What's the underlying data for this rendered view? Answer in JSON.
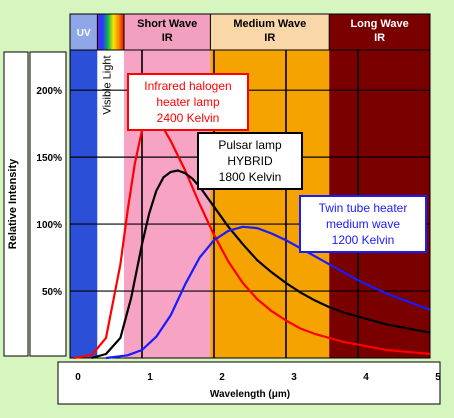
{
  "chart_data": {
    "type": "line",
    "xlabel": "Wavelength (μm)",
    "ylabel": "Relative Intensity",
    "xlim": [
      0,
      5
    ],
    "ylim": [
      0,
      2.3
    ],
    "x_ticks": [
      "0",
      "1",
      "2",
      "3",
      "4",
      "5"
    ],
    "y_ticks": [
      "50%",
      "100%",
      "150%",
      "200%"
    ],
    "grid": true,
    "bands": [
      {
        "label_line1": "UV",
        "label_line2": "",
        "x_range": [
          0,
          0.38
        ],
        "color": "#2b4fd6",
        "header_color": "#8fa7e6",
        "text_color": "#ffffff"
      },
      {
        "label_line1": "Visible Light",
        "label_line2": "",
        "x_range": [
          0.38,
          0.75
        ],
        "color": "#ffffff",
        "header_color": "rainbow",
        "text_color": "#000000"
      },
      {
        "label_line1": "Short Wave",
        "label_line2": "IR",
        "x_range": [
          0.75,
          1.95
        ],
        "color": "#f7a3c3",
        "header_color": "#f2a0c0",
        "text_color": "#000000"
      },
      {
        "label_line1": "Medium Wave",
        "label_line2": "IR",
        "x_range": [
          1.95,
          3.6
        ],
        "color": "#f5a300",
        "header_color": "#fad7a8",
        "text_color": "#000000"
      },
      {
        "label_line1": "Long Wave",
        "label_line2": "IR",
        "x_range": [
          3.6,
          5
        ],
        "color": "#7a0000",
        "header_color": "#7a0000",
        "text_color": "#ffffff"
      }
    ],
    "series": [
      {
        "color": "#ff0000",
        "x": [
          0.05,
          0.3,
          0.5,
          0.7,
          0.8,
          0.9,
          1.0,
          1.1,
          1.15,
          1.25,
          1.4,
          1.6,
          1.8,
          2.0,
          2.2,
          2.4,
          2.6,
          2.8,
          3.0,
          3.2,
          3.4,
          3.6,
          3.8,
          4.0,
          4.2,
          4.4,
          4.6,
          4.8,
          5.0
        ],
        "y": [
          0.0,
          0.02,
          0.15,
          0.7,
          1.1,
          1.45,
          1.7,
          1.8,
          1.8,
          1.76,
          1.62,
          1.4,
          1.15,
          0.92,
          0.72,
          0.56,
          0.44,
          0.35,
          0.28,
          0.22,
          0.18,
          0.15,
          0.12,
          0.1,
          0.08,
          0.06,
          0.05,
          0.04,
          0.03
        ]
      },
      {
        "color": "#000000",
        "x": [
          0.3,
          0.5,
          0.7,
          0.85,
          1.0,
          1.1,
          1.2,
          1.3,
          1.4,
          1.5,
          1.6,
          1.7,
          1.8,
          2.0,
          2.2,
          2.4,
          2.6,
          2.8,
          3.0,
          3.2,
          3.4,
          3.6,
          3.8,
          4.0,
          4.2,
          4.4,
          4.6,
          4.8,
          5.0
        ],
        "y": [
          0.0,
          0.03,
          0.15,
          0.45,
          0.85,
          1.08,
          1.25,
          1.35,
          1.39,
          1.4,
          1.38,
          1.34,
          1.28,
          1.13,
          0.98,
          0.85,
          0.73,
          0.64,
          0.56,
          0.49,
          0.43,
          0.38,
          0.34,
          0.31,
          0.28,
          0.25,
          0.23,
          0.21,
          0.19
        ]
      },
      {
        "color": "#1a1aff",
        "x": [
          0.5,
          0.8,
          1.0,
          1.2,
          1.4,
          1.6,
          1.8,
          2.0,
          2.2,
          2.4,
          2.6,
          2.8,
          3.0,
          3.2,
          3.4,
          3.6,
          3.8,
          4.0,
          4.2,
          4.4,
          4.6,
          4.8,
          5.0
        ],
        "y": [
          0.0,
          0.02,
          0.06,
          0.16,
          0.32,
          0.55,
          0.75,
          0.88,
          0.95,
          0.98,
          0.97,
          0.93,
          0.88,
          0.82,
          0.76,
          0.7,
          0.64,
          0.58,
          0.53,
          0.48,
          0.44,
          0.4,
          0.36
        ]
      }
    ],
    "annotations": [
      {
        "lines": [
          "Infrared halogen",
          "heater lamp",
          "2400 Kelvin"
        ],
        "color": "#ff0000",
        "border": "#ff0000"
      },
      {
        "lines": [
          "Pulsar lamp",
          "HYBRID",
          "1800 Kelvin"
        ],
        "color": "#000000",
        "border": "#000000"
      },
      {
        "lines": [
          "Twin tube heater",
          "medium wave",
          "1200 Kelvin"
        ],
        "color": "#1a1aff",
        "border": "#1a1aff"
      }
    ]
  }
}
